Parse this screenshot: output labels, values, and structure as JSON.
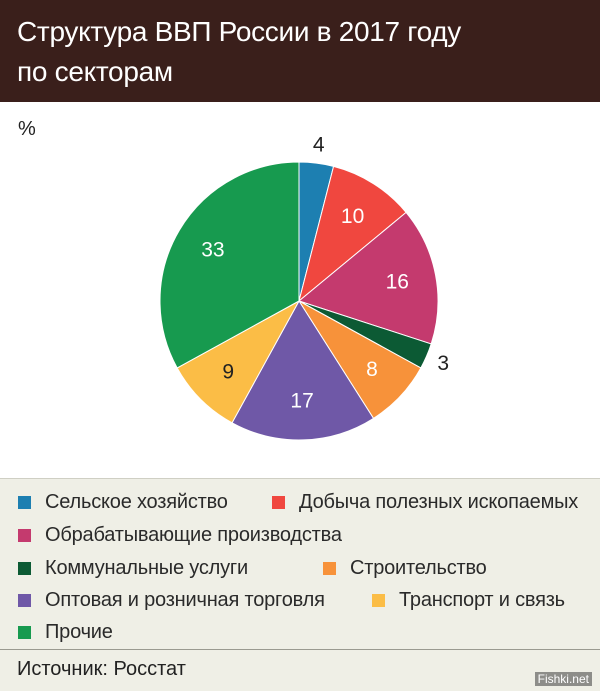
{
  "header": {
    "title": "Структура ВВП России в 2017 году\nпо секторам"
  },
  "chart_data": {
    "type": "pie",
    "unit": "%",
    "start_angle_deg": 0,
    "direction": "clockwise",
    "slices": [
      {
        "name": "Сельское хозяйство",
        "value": 4,
        "label": "4",
        "color": "#1d7fb1",
        "label_color": "#222222"
      },
      {
        "name": "Добыча полезных ископаемых",
        "value": 10,
        "label": "10",
        "color": "#f0473f",
        "label_color": "#ffffff"
      },
      {
        "name": "Обрабатывающие производства",
        "value": 16,
        "label": "16",
        "color": "#c43a6e",
        "label_color": "#ffffff"
      },
      {
        "name": "Коммунальные услуги",
        "value": 3,
        "label": "3",
        "color": "#0c5a34",
        "label_color": "#222222"
      },
      {
        "name": "Строительство",
        "value": 8,
        "label": "8",
        "color": "#f7923a",
        "label_color": "#ffffff"
      },
      {
        "name": "Оптовая и розничная торговля",
        "value": 17,
        "label": "17",
        "color": "#6f58a7",
        "label_color": "#ffffff"
      },
      {
        "name": "Транспорт и связь",
        "value": 9,
        "label": "9",
        "color": "#fbbd46",
        "label_color": "#222222"
      },
      {
        "name": "Прочие",
        "value": 33,
        "label": "33",
        "color": "#179a4f",
        "label_color": "#ffffff"
      }
    ]
  },
  "source": {
    "text": "Источник: Росстат"
  },
  "watermark": {
    "text": "Fishki.net"
  }
}
